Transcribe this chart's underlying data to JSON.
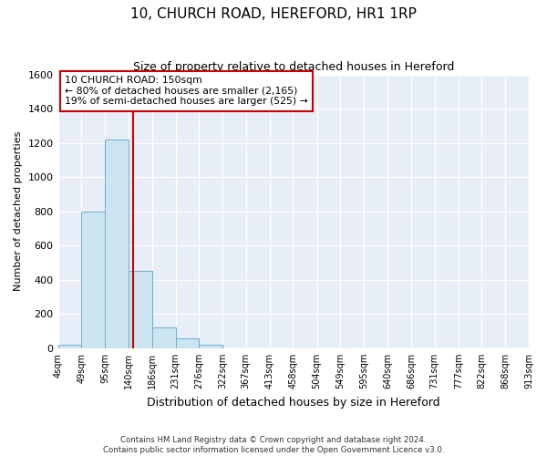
{
  "title": "10, CHURCH ROAD, HEREFORD, HR1 1RP",
  "subtitle": "Size of property relative to detached houses in Hereford",
  "xlabel": "Distribution of detached houses by size in Hereford",
  "ylabel": "Number of detached properties",
  "footer_line1": "Contains HM Land Registry data © Crown copyright and database right 2024.",
  "footer_line2": "Contains public sector information licensed under the Open Government Licence v3.0.",
  "bin_labels": [
    "4sqm",
    "49sqm",
    "95sqm",
    "140sqm",
    "186sqm",
    "231sqm",
    "276sqm",
    "322sqm",
    "367sqm",
    "413sqm",
    "458sqm",
    "504sqm",
    "549sqm",
    "595sqm",
    "640sqm",
    "686sqm",
    "731sqm",
    "777sqm",
    "822sqm",
    "868sqm",
    "913sqm"
  ],
  "bar_values": [
    20,
    800,
    1220,
    450,
    120,
    60,
    20,
    0,
    0,
    0,
    0,
    0,
    0,
    0,
    0,
    0,
    0,
    0,
    0,
    0
  ],
  "bar_color": "#cce4f0",
  "bar_edge_color": "#6aafd6",
  "vline_color": "#cc0000",
  "annotation_text_line1": "10 CHURCH ROAD: 150sqm",
  "annotation_text_line2": "← 80% of detached houses are smaller (2,165)",
  "annotation_text_line3": "19% of semi-detached houses are larger (525) →",
  "annotation_box_color": "#cc0000",
  "ylim": [
    0,
    1600
  ],
  "yticks": [
    0,
    200,
    400,
    600,
    800,
    1000,
    1200,
    1400,
    1600
  ],
  "background_color": "#e8eef8",
  "grid_color": "#ffffff",
  "fig_bg_color": "#ffffff"
}
